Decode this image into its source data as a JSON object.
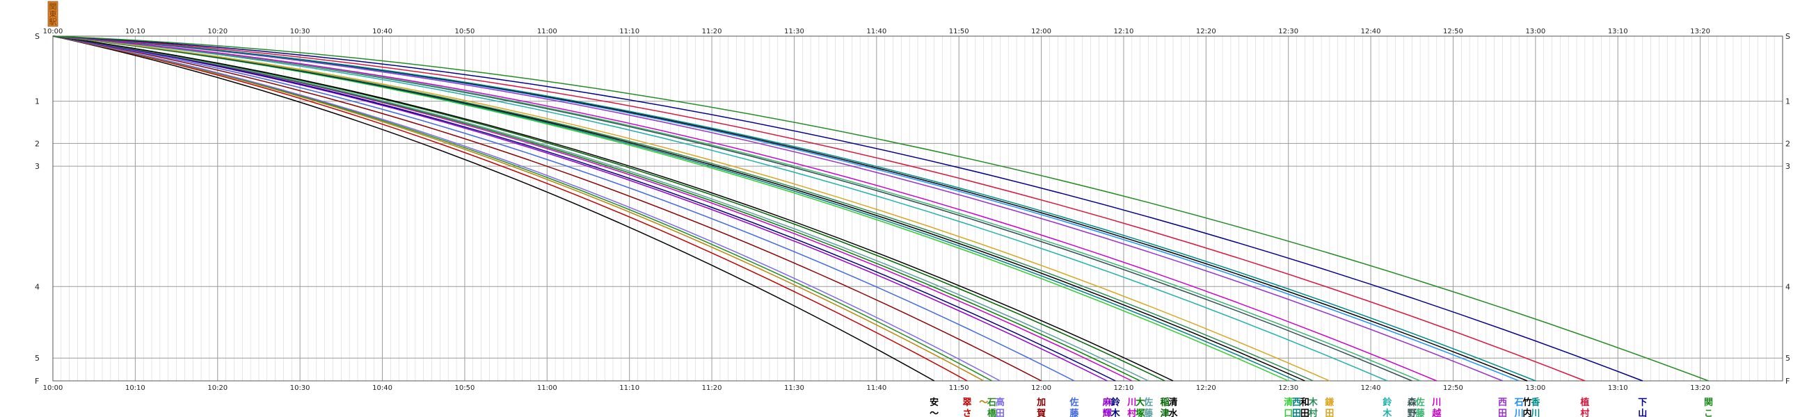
{
  "chart_data": {
    "type": "line",
    "title": "",
    "xlabel": "",
    "ylabel": "",
    "x_range": [
      "10:00",
      "13:30"
    ],
    "x_ticks": [
      "10:00",
      "10:10",
      "10:20",
      "10:30",
      "10:40",
      "10:50",
      "11:00",
      "11:10",
      "11:20",
      "11:30",
      "11:40",
      "11:50",
      "12:00",
      "12:10",
      "12:20",
      "12:30",
      "12:40",
      "12:50",
      "13:00",
      "13:10",
      "13:20"
    ],
    "start_label": [
      "関",
      "東",
      "駅"
    ],
    "stations": [
      {
        "label": "S",
        "km": 0
      },
      {
        "label": "1",
        "km": 1
      },
      {
        "label": "2",
        "km": 1.65
      },
      {
        "label": "3",
        "km": 2
      },
      {
        "label": "4",
        "km": 3.85
      },
      {
        "label": "5",
        "km": 4.95
      },
      {
        "label": "F",
        "km": 5.3
      }
    ],
    "grid": true,
    "legend": "none",
    "series": [
      {
        "name": "安〜",
        "finish": "11:47",
        "color": "#000000"
      },
      {
        "name": "翠さ",
        "finish": "11:51",
        "color": "#c00000"
      },
      {
        "name": "〜",
        "finish": "11:53",
        "color": "#b8860b"
      },
      {
        "name": "石橋",
        "finish": "11:54",
        "color": "#228b22"
      },
      {
        "name": "高田",
        "finish": "11:55",
        "color": "#7b68ee"
      },
      {
        "name": "加賀",
        "finish": "12:00",
        "color": "#8b0000"
      },
      {
        "name": "佐藤",
        "finish": "12:04",
        "color": "#4169e1"
      },
      {
        "name": "麻輝",
        "finish": "12:08",
        "color": "#9400d3"
      },
      {
        "name": "鈴木",
        "finish": "12:09",
        "color": "#000080"
      },
      {
        "name": "川村",
        "finish": "12:11",
        "color": "#cc00cc"
      },
      {
        "name": "大塚",
        "finish": "12:12",
        "color": "#008000"
      },
      {
        "name": "佐藤",
        "finish": "12:13",
        "color": "#5f9ea0"
      },
      {
        "name": "稲津",
        "finish": "12:15",
        "color": "#006400"
      },
      {
        "name": "清水",
        "finish": "12:16",
        "color": "#000000"
      },
      {
        "name": "清口",
        "finish": "12:30",
        "color": "#32cd32"
      },
      {
        "name": "西田",
        "finish": "12:31",
        "color": "#008080"
      },
      {
        "name": "和田",
        "finish": "12:32",
        "color": "#000000"
      },
      {
        "name": "木村",
        "finish": "12:33",
        "color": "#2e8b57"
      },
      {
        "name": "鎌田",
        "finish": "12:35",
        "color": "#daa520"
      },
      {
        "name": "鈴木",
        "finish": "12:42",
        "color": "#20b2aa"
      },
      {
        "name": "森野",
        "finish": "12:45",
        "color": "#2f4f4f"
      },
      {
        "name": "佐藤",
        "finish": "12:46",
        "color": "#3cb371"
      },
      {
        "name": "川越",
        "finish": "12:48",
        "color": "#cc00cc"
      },
      {
        "name": "西田",
        "finish": "12:56",
        "color": "#9932cc"
      },
      {
        "name": "石川",
        "finish": "12:58",
        "color": "#1e90ff"
      },
      {
        "name": "竹内",
        "finish": "12:59",
        "color": "#000000"
      },
      {
        "name": "香川",
        "finish": "13:00",
        "color": "#008b8b"
      },
      {
        "name": "植村",
        "finish": "13:06",
        "color": "#dc143c"
      },
      {
        "name": "下山",
        "finish": "13:13",
        "color": "#00008b"
      },
      {
        "name": "関こ",
        "finish": "13:21",
        "color": "#228b22"
      }
    ]
  }
}
